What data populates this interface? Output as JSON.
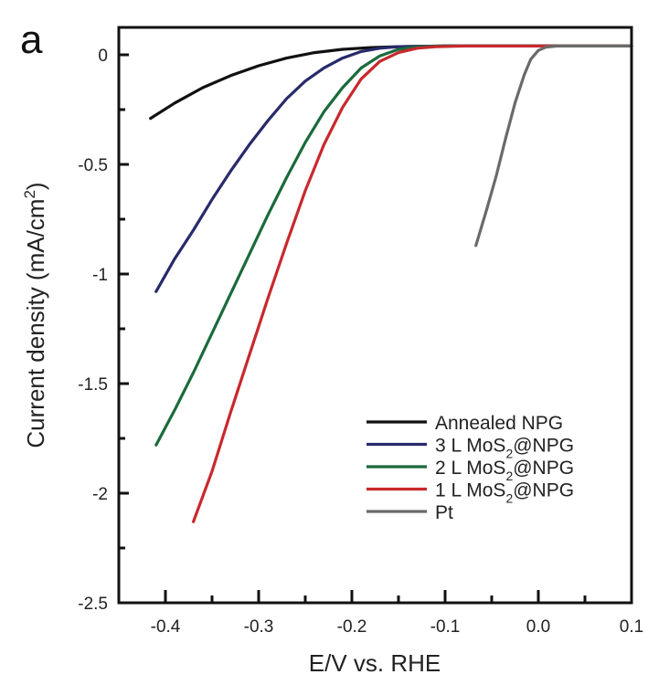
{
  "chart_data": {
    "type": "line",
    "panel_label": "a",
    "xlabel": "E/V vs. RHE",
    "ylabel": "Current density (mA/cm²)",
    "ylabel_parts": {
      "main": "Current density (mA/cm",
      "sup": "2",
      "end": ")"
    },
    "xlim": [
      -0.45,
      0.1
    ],
    "ylim": [
      -2.5,
      0.125
    ],
    "x_ticks": [
      -0.4,
      -0.3,
      -0.2,
      -0.1,
      0.0,
      0.1
    ],
    "x_tick_labels": [
      "-0.4",
      "-0.3",
      "-0.2",
      "-0.1",
      "0.0",
      "0.1"
    ],
    "x_minor_ticks": [
      -0.35,
      -0.25,
      -0.15,
      -0.05,
      0.05
    ],
    "y_ticks": [
      0,
      -0.5,
      -1,
      -1.5,
      -2,
      -2.5
    ],
    "y_tick_labels": [
      "0",
      "-0.5",
      "-1",
      "-1.5",
      "-2",
      "-2.5"
    ],
    "y_minor_ticks": [
      -0.25,
      -0.75,
      -1.25,
      -1.75,
      -2.25
    ],
    "grid": false,
    "legend_position": "bottom-right",
    "series": [
      {
        "name": "Annealed NPG",
        "label_main": "Annealed NPG",
        "label_sub": "",
        "label_end": "",
        "color": "#111111",
        "x": [
          -0.416,
          -0.39,
          -0.36,
          -0.33,
          -0.3,
          -0.27,
          -0.24,
          -0.21,
          -0.18,
          -0.15,
          -0.1,
          0.0,
          0.1
        ],
        "y": [
          -0.29,
          -0.22,
          -0.15,
          -0.095,
          -0.05,
          -0.015,
          0.01,
          0.025,
          0.033,
          0.037,
          0.04,
          0.04,
          0.04
        ]
      },
      {
        "name": "3 L MoS2@NPG",
        "label_main": "3 L MoS",
        "label_sub": "2",
        "label_end": "@NPG",
        "color": "#272a6b",
        "x": [
          -0.41,
          -0.39,
          -0.37,
          -0.35,
          -0.33,
          -0.31,
          -0.29,
          -0.27,
          -0.25,
          -0.23,
          -0.21,
          -0.19,
          -0.17,
          -0.15,
          -0.1,
          0.0,
          0.1
        ],
        "y": [
          -1.08,
          -0.93,
          -0.8,
          -0.66,
          -0.53,
          -0.41,
          -0.3,
          -0.2,
          -0.12,
          -0.06,
          -0.015,
          0.015,
          0.03,
          0.037,
          0.04,
          0.04,
          0.04
        ]
      },
      {
        "name": "2 L MoS2@NPG",
        "label_main": "2 L MoS",
        "label_sub": "2",
        "label_end": "@NPG",
        "color": "#1b6a3c",
        "x": [
          -0.41,
          -0.39,
          -0.37,
          -0.35,
          -0.33,
          -0.31,
          -0.29,
          -0.27,
          -0.25,
          -0.23,
          -0.21,
          -0.19,
          -0.17,
          -0.15,
          -0.13,
          -0.1,
          0.0,
          0.1
        ],
        "y": [
          -1.78,
          -1.62,
          -1.45,
          -1.27,
          -1.09,
          -0.91,
          -0.73,
          -0.56,
          -0.4,
          -0.26,
          -0.15,
          -0.06,
          -0.005,
          0.025,
          0.036,
          0.04,
          0.04,
          0.04
        ]
      },
      {
        "name": "1 L MoS2@NPG",
        "label_main": "1 L MoS",
        "label_sub": "2",
        "label_end": "@NPG",
        "color": "#c8282d",
        "x": [
          -0.37,
          -0.35,
          -0.33,
          -0.31,
          -0.29,
          -0.27,
          -0.25,
          -0.23,
          -0.21,
          -0.19,
          -0.17,
          -0.15,
          -0.13,
          -0.11,
          -0.08,
          0.0,
          0.1
        ],
        "y": [
          -2.13,
          -1.9,
          -1.63,
          -1.37,
          -1.11,
          -0.86,
          -0.62,
          -0.41,
          -0.24,
          -0.11,
          -0.03,
          0.01,
          0.03,
          0.037,
          0.04,
          0.04,
          0.04
        ]
      },
      {
        "name": "Pt",
        "label_main": "Pt",
        "label_sub": "",
        "label_end": "",
        "color": "#6a6a6a",
        "x": [
          -0.067,
          -0.055,
          -0.045,
          -0.035,
          -0.025,
          -0.015,
          -0.008,
          0.0,
          0.008,
          0.02,
          0.05,
          0.1
        ],
        "y": [
          -0.87,
          -0.7,
          -0.55,
          -0.38,
          -0.22,
          -0.09,
          -0.02,
          0.02,
          0.035,
          0.04,
          0.04,
          0.04
        ]
      }
    ]
  }
}
